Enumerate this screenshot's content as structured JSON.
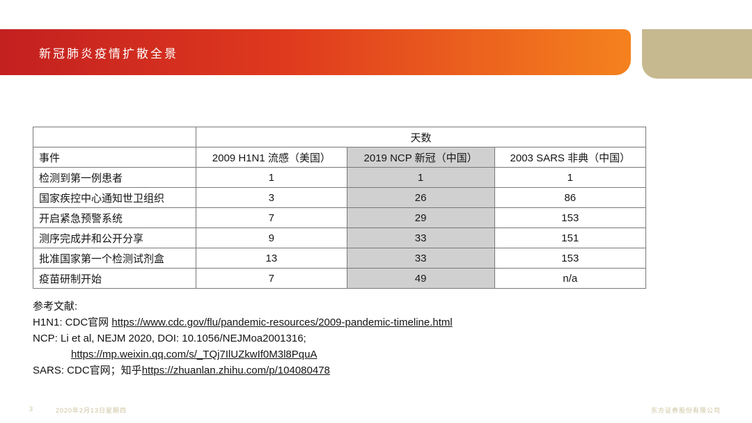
{
  "slide": {
    "title": "新冠肺炎疫情扩散全景",
    "page_number": "3",
    "footer_date": "2020年2月13日星期四",
    "footer_company": "东方证券股份有限公司"
  },
  "colors": {
    "bar_gradient_left": "#c32020",
    "bar_gradient_right": "#f5821e",
    "tan_block": "#c6b98f",
    "footer_text": "#cdc39c",
    "table_highlight_column": "#d0d0d0",
    "table_border": "#787878"
  },
  "chart_data": {
    "type": "table",
    "title": "天数",
    "categories": [
      "2009 H1N1 流感（美国）",
      "2019 NCP 新冠（中国）",
      "2003 SARS 非典（中国）"
    ],
    "row_label_header": "事件",
    "rows": [
      {
        "event": "检测到第一例患者",
        "values": [
          "1",
          "1",
          "1"
        ]
      },
      {
        "event": "国家疾控中心通知世卫组织",
        "values": [
          "3",
          "26",
          "86"
        ]
      },
      {
        "event": "开启紧急预警系统",
        "values": [
          "7",
          "29",
          "153"
        ]
      },
      {
        "event": "测序完成并和公开分享",
        "values": [
          "9",
          "33",
          "151"
        ]
      },
      {
        "event": "批准国家第一个检测试剂盒",
        "values": [
          "13",
          "33",
          "153"
        ]
      },
      {
        "event": "疫苗研制开始",
        "values": [
          "7",
          "49",
          "n/a"
        ]
      }
    ],
    "highlighted_column": "2019 NCP 新冠（中国）"
  },
  "table": {
    "days_header": "天数",
    "col_event": "事件",
    "col_h1n1": "2009 H1N1 流感（美国）",
    "col_ncp": "2019 NCP 新冠（中国）",
    "col_sars": "2003 SARS 非典（中国）",
    "rows": [
      {
        "event": "检测到第一例患者",
        "h1n1": "1",
        "ncp": "1",
        "sars": "1"
      },
      {
        "event": "国家疾控中心通知世卫组织",
        "h1n1": "3",
        "ncp": "26",
        "sars": "86"
      },
      {
        "event": "开启紧急预警系统",
        "h1n1": "7",
        "ncp": "29",
        "sars": "153"
      },
      {
        "event": "测序完成并和公开分享",
        "h1n1": "9",
        "ncp": "33",
        "sars": "151"
      },
      {
        "event": "批准国家第一个检测试剂盒",
        "h1n1": "13",
        "ncp": "33",
        "sars": "153"
      },
      {
        "event": "疫苗研制开始",
        "h1n1": "7",
        "ncp": "49",
        "sars": "n/a"
      }
    ]
  },
  "references": {
    "heading": "参考文献:",
    "h1n1_prefix": "H1N1: CDC官网 ",
    "h1n1_link": "https://www.cdc.gov/flu/pandemic-resources/2009-pandemic-timeline.html",
    "ncp_line": "NCP: Li et al, NEJM 2020, DOI: 10.1056/NEJMoa2001316;",
    "ncp_link": "https://mp.weixin.qq.com/s/_TQj7IlUZkwIf0M3l8PquA",
    "sars_prefix": "SARS: CDC官网；知乎",
    "sars_link": "https://zhuanlan.zhihu.com/p/104080478"
  }
}
